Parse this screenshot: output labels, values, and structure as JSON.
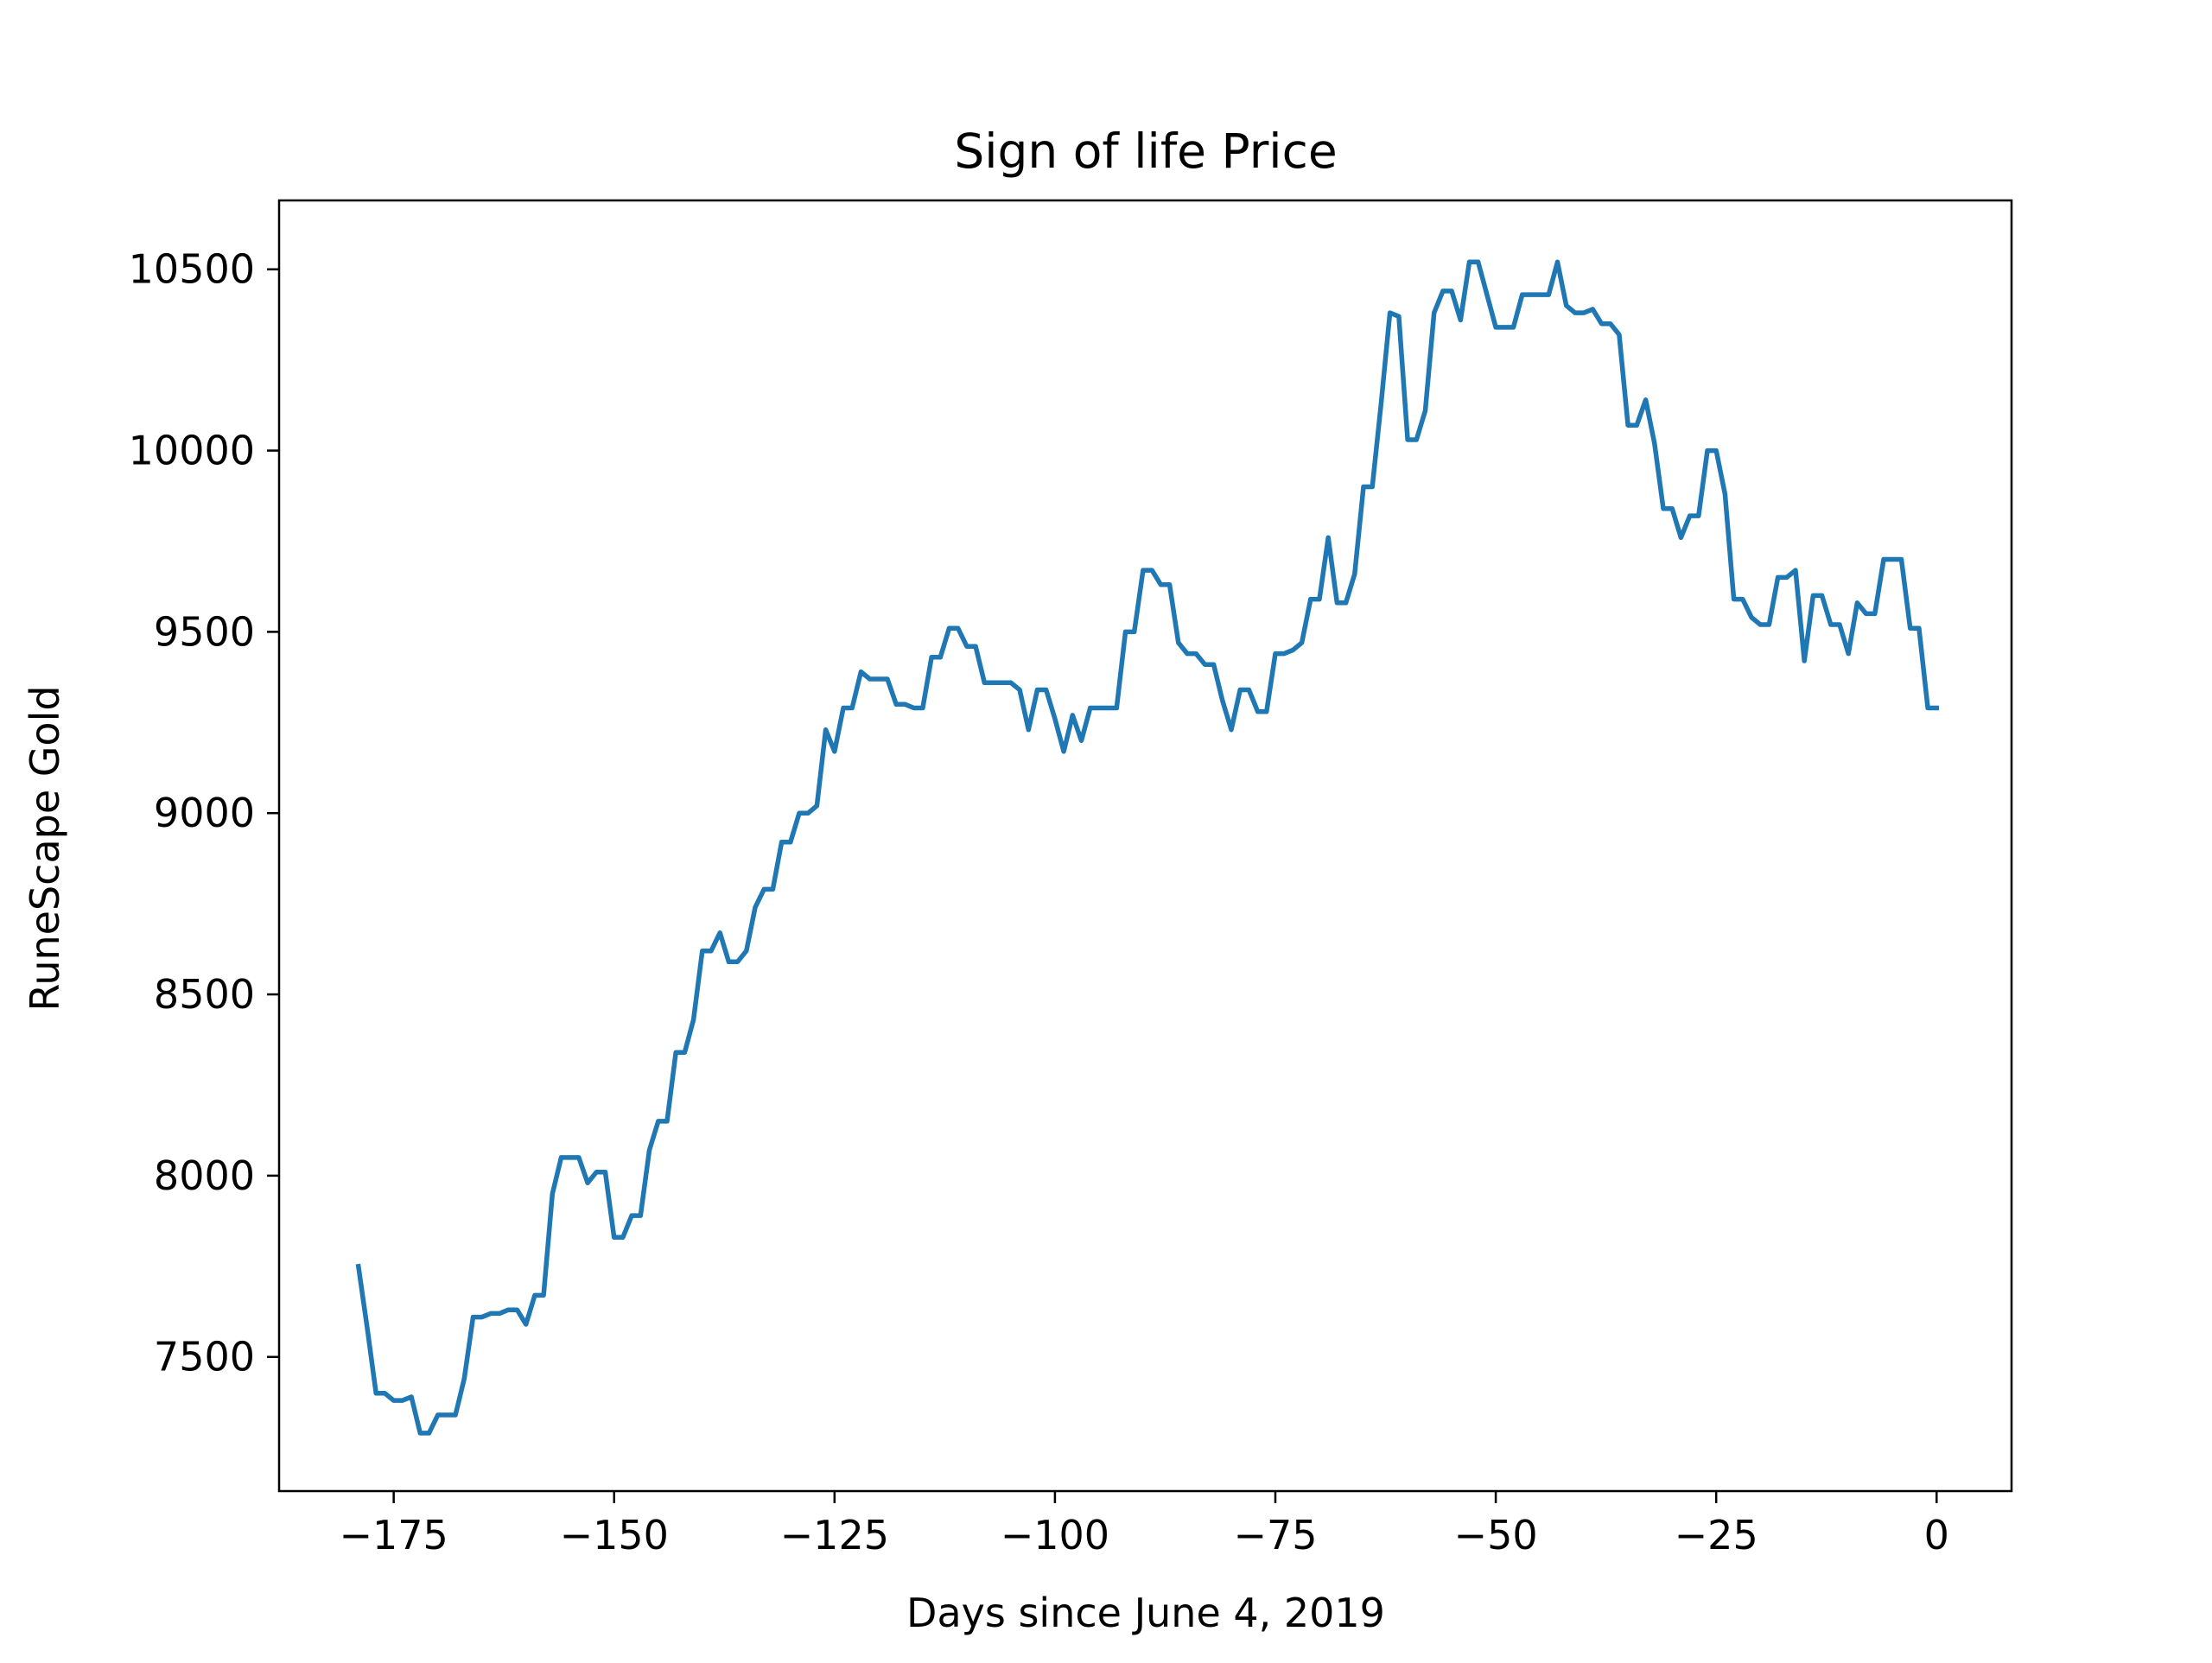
{
  "chart_data": {
    "type": "line",
    "title": "Sign of life Price",
    "xlabel": "Days since June 4, 2019",
    "ylabel": "RuneScape Gold",
    "xlim": [
      -188,
      8.5
    ],
    "ylim": [
      7130,
      10690
    ],
    "x_ticks": [
      -175,
      -150,
      -125,
      -100,
      -75,
      -50,
      -25,
      0
    ],
    "x_tick_labels": [
      "−175",
      "−150",
      "−125",
      "−100",
      "−75",
      "−50",
      "−25",
      "0"
    ],
    "y_ticks": [
      7500,
      8000,
      8500,
      9000,
      9500,
      10000,
      10500
    ],
    "y_tick_labels": [
      "7500",
      "8000",
      "8500",
      "9000",
      "9500",
      "10000",
      "10500"
    ],
    "grid": false,
    "line_color": "#1f77b4",
    "series": [
      {
        "name": "",
        "x": [
          -179,
          -178,
          -177,
          -176,
          -175,
          -174,
          -173,
          -172,
          -171,
          -170,
          -169,
          -168,
          -167,
          -166,
          -165,
          -164,
          -163,
          -162,
          -161,
          -160,
          -159,
          -158,
          -157,
          -156,
          -155,
          -154,
          -153,
          -152,
          -151,
          -150,
          -149,
          -148,
          -147,
          -146,
          -145,
          -144,
          -143,
          -142,
          -141,
          -140,
          -139,
          -138,
          -137,
          -136,
          -135,
          -134,
          -133,
          -132,
          -131,
          -130,
          -129,
          -128,
          -127,
          -126,
          -125,
          -124,
          -123,
          -122,
          -121,
          -120,
          -119,
          -118,
          -117,
          -116,
          -115,
          -114,
          -113,
          -112,
          -111,
          -110,
          -109,
          -108,
          -107,
          -106,
          -105,
          -104,
          -103,
          -102,
          -101,
          -100,
          -99,
          -98,
          -97,
          -96,
          -95,
          -94,
          -93,
          -92,
          -91,
          -90,
          -89,
          -88,
          -87,
          -86,
          -85,
          -84,
          -83,
          -82,
          -81,
          -80,
          -79,
          -78,
          -77,
          -76,
          -75,
          -74,
          -73,
          -72,
          -71,
          -70,
          -69,
          -68,
          -67,
          -66,
          -65,
          -64,
          -63,
          -62,
          -61,
          -60,
          -59,
          -58,
          -57,
          -56,
          -55,
          -54,
          -53,
          -52,
          -51,
          -50,
          -49,
          -48,
          -47,
          -46,
          -45,
          -44,
          -43,
          -42,
          -41,
          -40,
          -39,
          -38,
          -37,
          -36,
          -35,
          -34,
          -33,
          -32,
          -31,
          -30,
          -29,
          -28,
          -27,
          -26,
          -25,
          -24,
          -23,
          -22,
          -21,
          -20,
          -19,
          -18,
          -17,
          -16,
          -15,
          -14,
          -13,
          -12,
          -11,
          -10,
          -9,
          -8,
          -7,
          -6,
          -5,
          -4,
          -3,
          -2,
          -1,
          0
        ],
        "y": [
          7750,
          7580,
          7400,
          7400,
          7380,
          7380,
          7390,
          7290,
          7290,
          7340,
          7340,
          7340,
          7440,
          7610,
          7610,
          7620,
          7620,
          7630,
          7630,
          7590,
          7670,
          7670,
          7950,
          8050,
          8050,
          8050,
          7980,
          8010,
          8010,
          7830,
          7830,
          7890,
          7890,
          8070,
          8150,
          8150,
          8340,
          8340,
          8430,
          8620,
          8620,
          8670,
          8590,
          8590,
          8620,
          8740,
          8790,
          8790,
          8920,
          8920,
          9000,
          9000,
          9020,
          9230,
          9170,
          9290,
          9290,
          9390,
          9370,
          9370,
          9370,
          9300,
          9300,
          9290,
          9290,
          9430,
          9430,
          9510,
          9510,
          9460,
          9460,
          9360,
          9360,
          9360,
          9360,
          9340,
          9230,
          9340,
          9340,
          9260,
          9170,
          9270,
          9200,
          9290,
          9290,
          9290,
          9290,
          9500,
          9500,
          9670,
          9670,
          9630,
          9630,
          9470,
          9440,
          9440,
          9410,
          9410,
          9310,
          9230,
          9340,
          9340,
          9280,
          9280,
          9440,
          9440,
          9450,
          9470,
          9590,
          9590,
          9760,
          9580,
          9580,
          9660,
          9900,
          9900,
          10130,
          10380,
          10370,
          10030,
          10030,
          10110,
          10380,
          10440,
          10440,
          10360,
          10520,
          10520,
          10430,
          10340,
          10340,
          10340,
          10430,
          10430,
          10430,
          10430,
          10520,
          10400,
          10380,
          10380,
          10390,
          10350,
          10350,
          10320,
          10070,
          10070,
          10140,
          10020,
          9840,
          9840,
          9760,
          9820,
          9820,
          10000,
          10000,
          9880,
          9590,
          9590,
          9540,
          9520,
          9520,
          9650,
          9650,
          9670,
          9420,
          9600,
          9600,
          9520,
          9520,
          9440,
          9580,
          9550,
          9550,
          9700,
          9700,
          9700,
          9510,
          9510,
          9290,
          9290
        ]
      }
    ]
  }
}
